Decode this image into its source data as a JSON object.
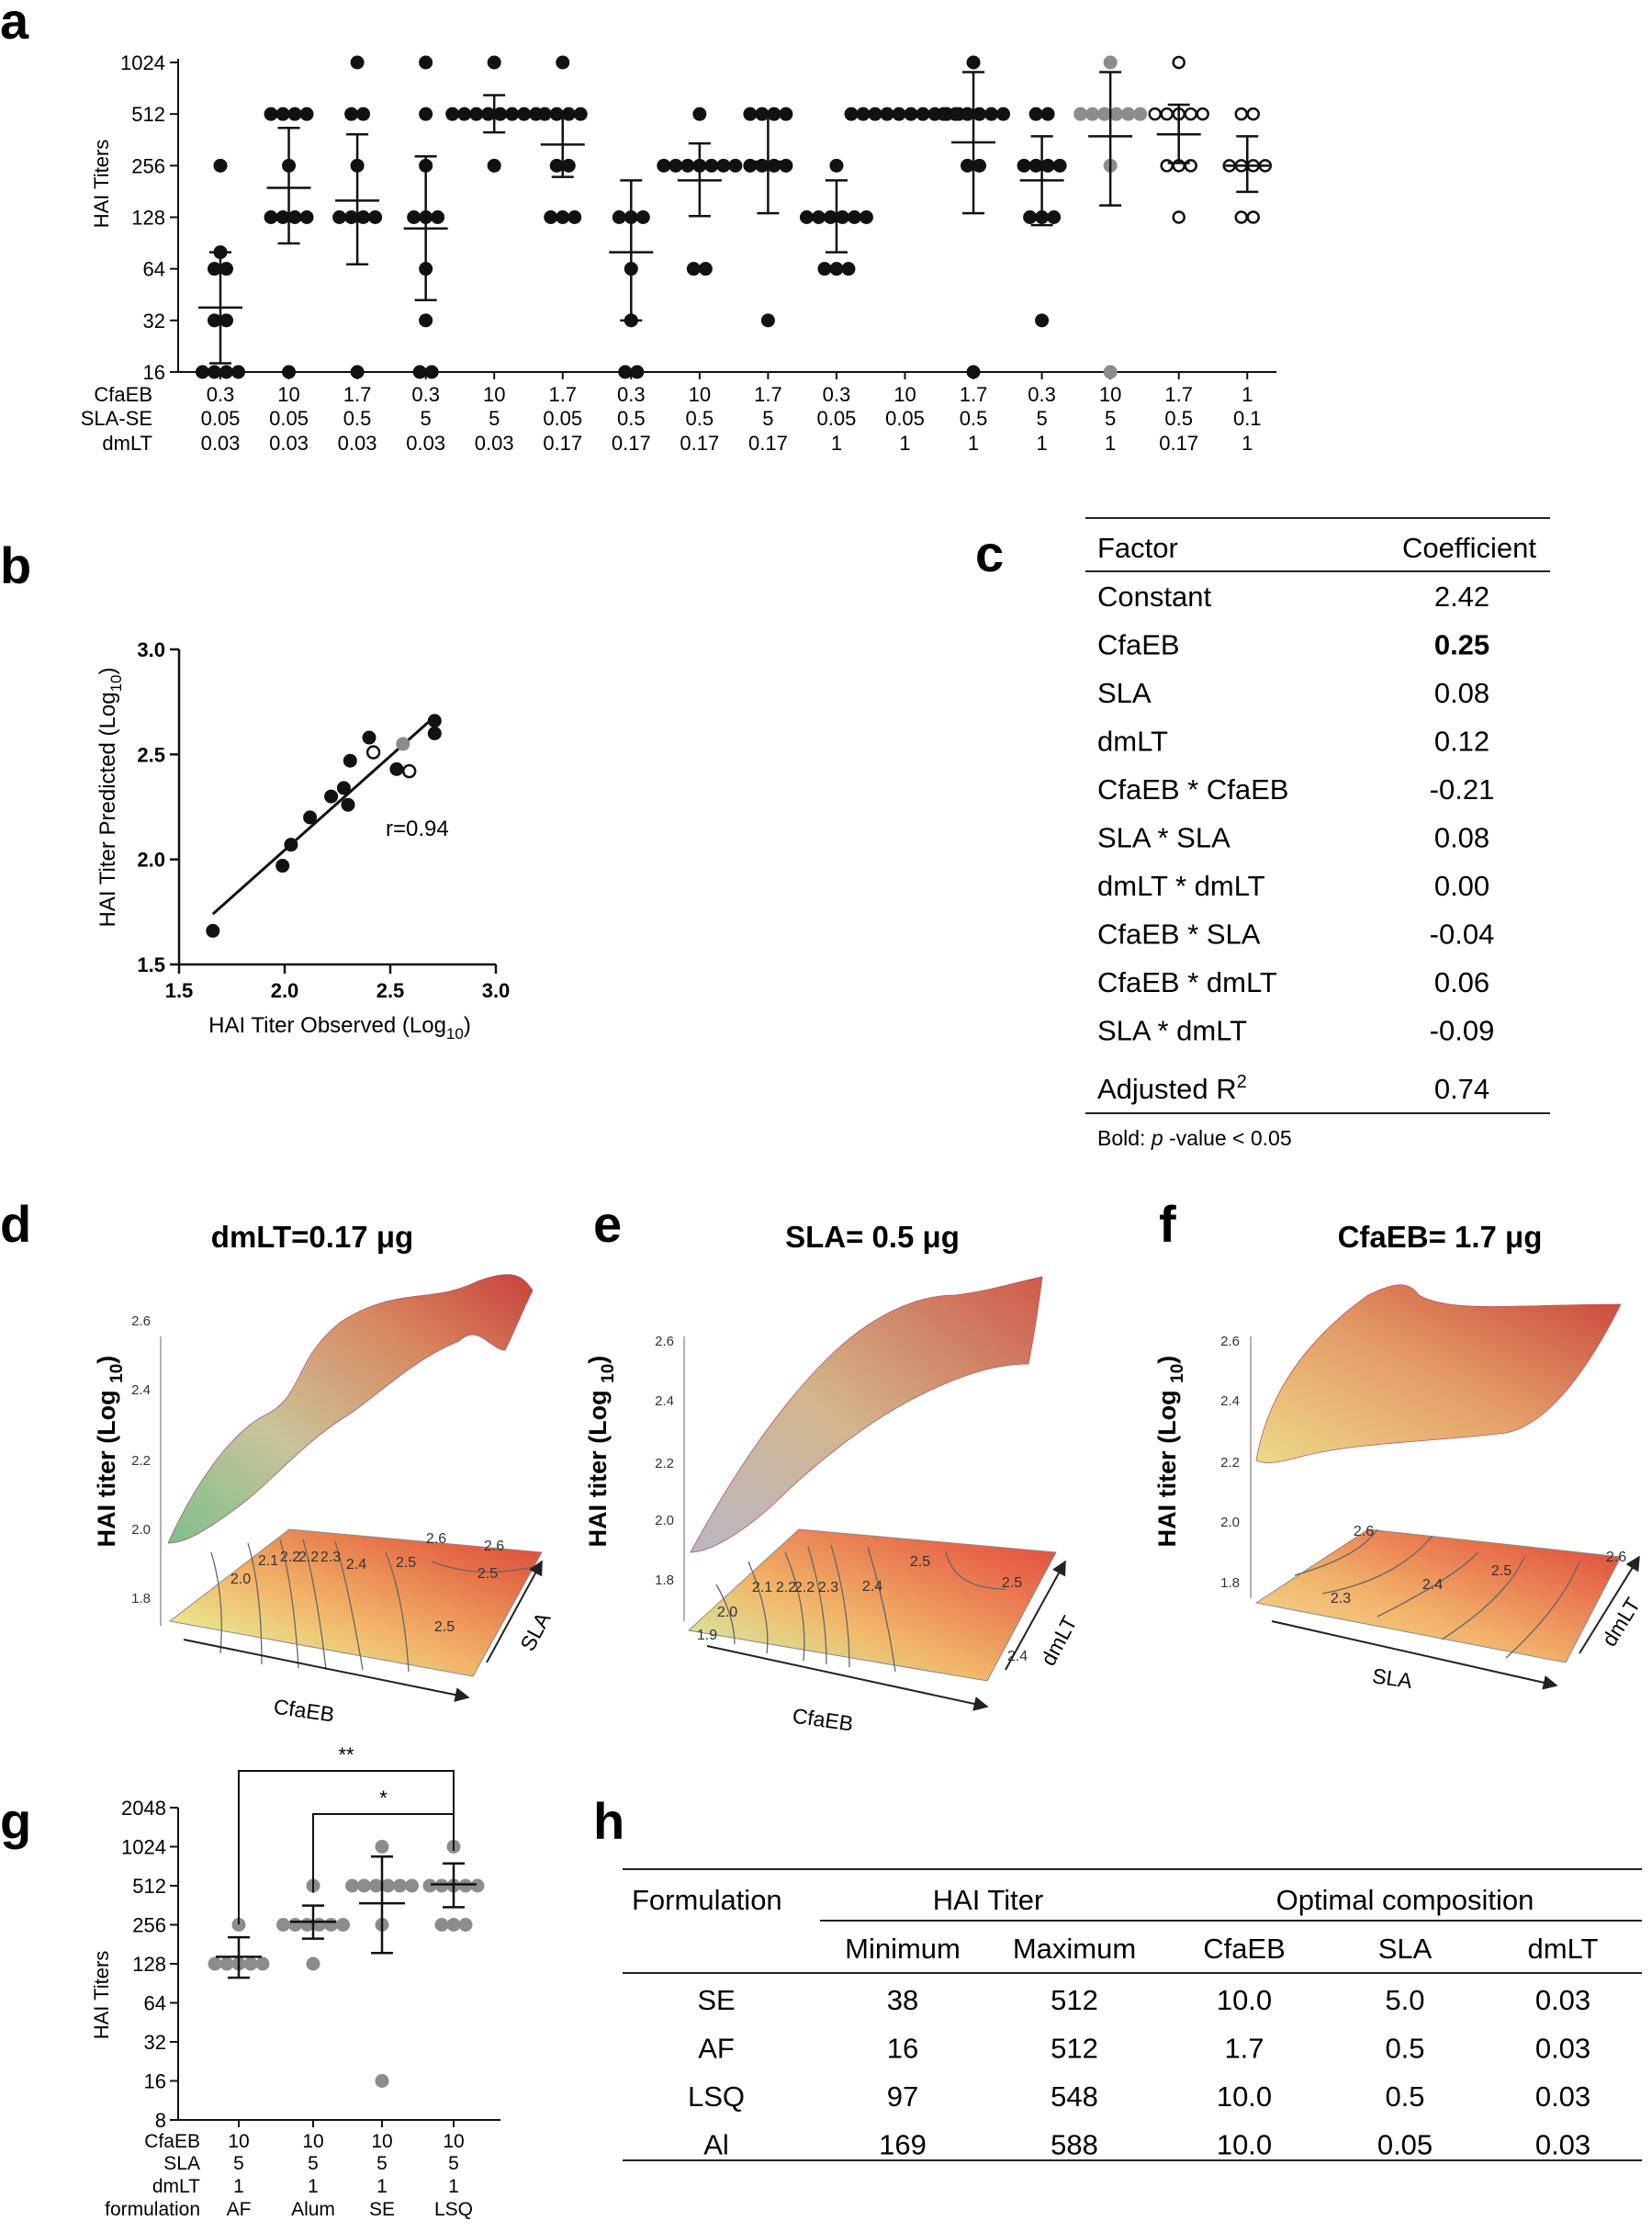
{
  "panel_labels": [
    "a",
    "b",
    "c",
    "d",
    "e",
    "f",
    "g",
    "h"
  ],
  "chart_data": [
    {
      "id": "a",
      "type": "scatter",
      "ylabel": "HAI Titers",
      "yscale": "log2",
      "ylim": [
        16,
        1024
      ],
      "yticks": [
        16,
        32,
        64,
        128,
        256,
        512,
        1024
      ],
      "row_labels": [
        "CfaEB",
        "SLA-SE",
        "dmLT"
      ],
      "groups": [
        {
          "cfaeb": "0.3",
          "sla": "0.05",
          "dmlt": "0.03",
          "mean": 38,
          "lo": 18,
          "hi": 80,
          "marker": "filled",
          "points": [
            256,
            80,
            64,
            64,
            32,
            32,
            16,
            16,
            16,
            16
          ]
        },
        {
          "cfaeb": "10",
          "sla": "0.05",
          "dmlt": "0.03",
          "mean": 190,
          "lo": 90,
          "hi": 425,
          "marker": "filled",
          "points": [
            512,
            512,
            512,
            512,
            256,
            128,
            128,
            128,
            128,
            16
          ]
        },
        {
          "cfaeb": "1.7",
          "sla": "0.5",
          "dmlt": "0.03",
          "mean": 160,
          "lo": 68,
          "hi": 390,
          "marker": "filled",
          "points": [
            1024,
            512,
            512,
            256,
            128,
            128,
            128,
            128,
            16
          ]
        },
        {
          "cfaeb": "0.3",
          "sla": "5",
          "dmlt": "0.03",
          "mean": 110,
          "lo": 42,
          "hi": 290,
          "marker": "filled",
          "points": [
            1024,
            512,
            256,
            128,
            128,
            128,
            64,
            32,
            16,
            16
          ]
        },
        {
          "cfaeb": "10",
          "sla": "5",
          "dmlt": "0.03",
          "mean": 512,
          "lo": 400,
          "hi": 660,
          "marker": "filled",
          "points": [
            1024,
            512,
            512,
            512,
            512,
            512,
            512,
            512,
            512,
            256
          ]
        },
        {
          "cfaeb": "1.7",
          "sla": "0.05",
          "dmlt": "0.17",
          "mean": 340,
          "lo": 220,
          "hi": 530,
          "marker": "filled",
          "points": [
            1024,
            512,
            512,
            512,
            512,
            256,
            256,
            128,
            128,
            128
          ]
        },
        {
          "cfaeb": "0.3",
          "sla": "0.5",
          "dmlt": "0.17",
          "mean": 80,
          "lo": 32,
          "hi": 210,
          "marker": "filled",
          "points": [
            128,
            128,
            128,
            64,
            32,
            16,
            16
          ]
        },
        {
          "cfaeb": "10",
          "sla": "0.5",
          "dmlt": "0.17",
          "mean": 210,
          "lo": 130,
          "hi": 345,
          "marker": "filled",
          "points": [
            512,
            256,
            256,
            256,
            256,
            256,
            256,
            256,
            64,
            64
          ]
        },
        {
          "cfaeb": "1.7",
          "sla": "5",
          "dmlt": "0.17",
          "mean": 270,
          "lo": 135,
          "hi": 512,
          "marker": "filled",
          "points": [
            512,
            512,
            512,
            512,
            256,
            256,
            256,
            256,
            32
          ]
        },
        {
          "cfaeb": "0.3",
          "sla": "0.05",
          "dmlt": "1",
          "mean": 130,
          "lo": 80,
          "hi": 210,
          "marker": "filled",
          "points": [
            256,
            128,
            128,
            128,
            128,
            128,
            128,
            64,
            64,
            64
          ]
        },
        {
          "cfaeb": "10",
          "sla": "0.05",
          "dmlt": "1",
          "mean": 512,
          "lo": 512,
          "hi": 512,
          "marker": "filled",
          "points": [
            512,
            512,
            512,
            512,
            512,
            512,
            512,
            512,
            512,
            512
          ]
        },
        {
          "cfaeb": "1.7",
          "sla": "0.5",
          "dmlt": "1",
          "mean": 350,
          "lo": 135,
          "hi": 900,
          "marker": "filled",
          "points": [
            1024,
            512,
            512,
            512,
            512,
            512,
            512,
            256,
            256,
            16
          ]
        },
        {
          "cfaeb": "0.3",
          "sla": "5",
          "dmlt": "1",
          "mean": 210,
          "lo": 115,
          "hi": 380,
          "marker": "filled",
          "points": [
            512,
            512,
            256,
            256,
            256,
            256,
            128,
            128,
            128,
            32
          ]
        },
        {
          "cfaeb": "10",
          "sla": "5",
          "dmlt": "1",
          "mean": 380,
          "lo": 150,
          "hi": 900,
          "marker": "grey",
          "points": [
            1024,
            512,
            512,
            512,
            512,
            512,
            512,
            256,
            16
          ]
        },
        {
          "cfaeb": "1.7",
          "sla": "0.5",
          "dmlt": "0.17",
          "mean": 390,
          "lo": 265,
          "hi": 580,
          "marker": "open",
          "points": [
            1024,
            512,
            512,
            512,
            512,
            512,
            256,
            256,
            256,
            128
          ]
        },
        {
          "cfaeb": "1",
          "sla": "0.1",
          "dmlt": "1",
          "mean": 256,
          "lo": 180,
          "hi": 380,
          "marker": "open",
          "points": [
            512,
            512,
            256,
            256,
            256,
            256,
            128,
            128
          ]
        }
      ]
    },
    {
      "id": "b",
      "type": "scatter",
      "xlabel": "HAI Titer Observed (Log",
      "xlabel_sub": "10",
      "ylabel": "HAI Titer Predicted (Log",
      "ylabel_sub": "10",
      "xlim": [
        1.5,
        3.0
      ],
      "ylim": [
        1.5,
        3.0
      ],
      "xticks": [
        "1.5",
        "2.0",
        "2.5",
        "3.0"
      ],
      "yticks": [
        "1.5",
        "2.0",
        "2.5",
        "3.0"
      ],
      "annotation": "r=0.94",
      "fit_line": [
        [
          1.66,
          1.74
        ],
        [
          2.71,
          2.68
        ]
      ],
      "points": [
        {
          "x": 1.66,
          "y": 1.66,
          "m": "filled"
        },
        {
          "x": 1.99,
          "y": 1.97,
          "m": "filled"
        },
        {
          "x": 2.03,
          "y": 2.07,
          "m": "filled"
        },
        {
          "x": 2.12,
          "y": 2.2,
          "m": "filled"
        },
        {
          "x": 2.22,
          "y": 2.3,
          "m": "filled"
        },
        {
          "x": 2.28,
          "y": 2.34,
          "m": "filled"
        },
        {
          "x": 2.3,
          "y": 2.26,
          "m": "filled"
        },
        {
          "x": 2.31,
          "y": 2.47,
          "m": "filled"
        },
        {
          "x": 2.4,
          "y": 2.58,
          "m": "filled"
        },
        {
          "x": 2.53,
          "y": 2.43,
          "m": "filled"
        },
        {
          "x": 2.71,
          "y": 2.66,
          "m": "filled"
        },
        {
          "x": 2.71,
          "y": 2.6,
          "m": "filled"
        },
        {
          "x": 2.56,
          "y": 2.55,
          "m": "grey"
        },
        {
          "x": 2.42,
          "y": 2.51,
          "m": "open"
        },
        {
          "x": 2.59,
          "y": 2.42,
          "m": "open"
        }
      ]
    },
    {
      "id": "d",
      "type": "surface",
      "title": "dmLT=0.17 μg",
      "zlabel": "HAI titer  (Log ",
      "zlabel_sub": "10",
      "xlabel": "CfaEB",
      "ylabel": "SLA",
      "zticks": [
        "1.8",
        "2.0",
        "2.2",
        "2.4",
        "2.6"
      ],
      "contour_labels": [
        "2.0",
        "2.1",
        "2.2",
        "2.2",
        "2.3",
        "2.4",
        "2.5",
        "2.6",
        "2.6",
        "2.5",
        "2.5"
      ]
    },
    {
      "id": "e",
      "type": "surface",
      "title": "SLA= 0.5 μg",
      "zlabel": "HAI titer  (Log ",
      "zlabel_sub": "10",
      "xlabel": "CfaEB",
      "ylabel": "dmLT",
      "zticks": [
        "1.8",
        "2.0",
        "2.2",
        "2.4",
        "2.6"
      ],
      "contour_labels": [
        "1.9",
        "2.0",
        "2.1",
        "2.2",
        "2.2",
        "2.3",
        "2.4",
        "2.5",
        "2.5",
        "2.4"
      ]
    },
    {
      "id": "f",
      "type": "surface",
      "title": "CfaEB= 1.7 μg",
      "zlabel": "HAI titer  (Log ",
      "zlabel_sub": "10",
      "xlabel": "SLA",
      "ylabel": "dmLT",
      "zticks": [
        "1.8",
        "2.0",
        "2.2",
        "2.4",
        "2.6"
      ],
      "contour_labels": [
        "2.6",
        "2.5",
        "2.4",
        "2.3",
        "2.6"
      ]
    },
    {
      "id": "g",
      "type": "scatter",
      "ylabel": "HAI Titers",
      "yscale": "log2",
      "ylim": [
        8,
        2048
      ],
      "yticks": [
        8,
        16,
        32,
        64,
        128,
        256,
        512,
        1024,
        2048
      ],
      "row_labels": [
        "CfaEB",
        "SLA",
        "dmLT",
        "formulation"
      ],
      "significance": [
        {
          "from": 0,
          "to": 3,
          "label": "**"
        },
        {
          "from": 1,
          "to": 3,
          "label": "*"
        }
      ],
      "groups": [
        {
          "cfaeb": "10",
          "sla": "5",
          "dmlt": "1",
          "formulation": "AF",
          "mean": 145,
          "lo": 100,
          "hi": 205,
          "points": [
            256,
            128,
            128,
            128,
            128,
            128
          ]
        },
        {
          "cfaeb": "10",
          "sla": "5",
          "dmlt": "1",
          "formulation": "Alum",
          "mean": 270,
          "lo": 200,
          "hi": 360,
          "points": [
            512,
            256,
            256,
            256,
            256,
            256,
            256,
            128
          ]
        },
        {
          "cfaeb": "10",
          "sla": "5",
          "dmlt": "1",
          "formulation": "SE",
          "mean": 375,
          "lo": 155,
          "hi": 860,
          "points": [
            1024,
            512,
            512,
            512,
            512,
            512,
            512,
            256,
            16
          ]
        },
        {
          "cfaeb": "10",
          "sla": "5",
          "dmlt": "1",
          "formulation": "LSQ",
          "mean": 525,
          "lo": 350,
          "hi": 760,
          "points": [
            1024,
            512,
            512,
            512,
            512,
            512,
            256,
            256,
            256
          ]
        }
      ]
    }
  ],
  "table_c": {
    "headers": [
      "Factor",
      "Coefficient"
    ],
    "rows": [
      {
        "factor": "Constant",
        "coef": "2.42",
        "bold": false
      },
      {
        "factor": "CfaEB",
        "coef": "0.25",
        "bold": true
      },
      {
        "factor": "SLA",
        "coef": "0.08",
        "bold": false
      },
      {
        "factor": "dmLT",
        "coef": "0.12",
        "bold": false
      },
      {
        "factor": "CfaEB * CfaEB",
        "coef": "-0.21",
        "bold": false
      },
      {
        "factor": "SLA * SLA",
        "coef": "0.08",
        "bold": false
      },
      {
        "factor": "dmLT * dmLT",
        "coef": "0.00",
        "bold": false
      },
      {
        "factor": "CfaEB * SLA",
        "coef": "-0.04",
        "bold": false
      },
      {
        "factor": "CfaEB * dmLT",
        "coef": "0.06",
        "bold": false
      },
      {
        "factor": "SLA * dmLT",
        "coef": "-0.09",
        "bold": false
      }
    ],
    "r2_label": "Adjusted R",
    "r2_sup": "2",
    "r2_value": "0.74",
    "footnote_bold": "Bold: ",
    "footnote_p": "p",
    "footnote_rest": " -value < 0.05"
  },
  "table_h": {
    "col_formulation": "Formulation",
    "group_hai": "HAI Titer",
    "group_opt": "Optimal composition",
    "subheaders": [
      "Minimum",
      "Maximum",
      "CfaEB",
      "SLA",
      "dmLT"
    ],
    "rows": [
      [
        "SE",
        "38",
        "512",
        "10.0",
        "5.0",
        "0.03"
      ],
      [
        "AF",
        "16",
        "512",
        "1.7",
        "0.5",
        "0.03"
      ],
      [
        "LSQ",
        "97",
        "548",
        "10.0",
        "0.5",
        "0.03"
      ],
      [
        "Al",
        "169",
        "588",
        "10.0",
        "0.05",
        "0.03"
      ]
    ]
  },
  "colors": {
    "filled": "#111111",
    "grey": "#8c8c8c",
    "open_fill": "#ffffff",
    "surface_high": "#c8423c",
    "surface_mid": "#e7a36b",
    "surface_low": "#e8e08a",
    "surface_min": "#5bbf95"
  }
}
